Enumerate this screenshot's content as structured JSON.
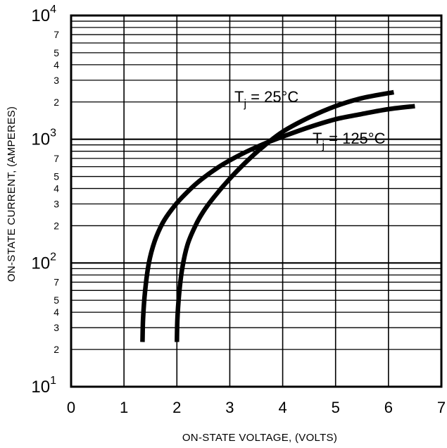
{
  "chart_data": {
    "type": "line",
    "xlabel": "ON-STATE VOLTAGE, (VOLTS)",
    "ylabel": "ON-STATE CURRENT, (AMPERES)",
    "xlim": [
      0,
      7
    ],
    "ylim": [
      10,
      10000
    ],
    "yscale": "log",
    "grid": true,
    "x_ticks": [
      "0",
      "1",
      "2",
      "3",
      "4",
      "5",
      "6",
      "7"
    ],
    "y_major_ticks": [
      {
        "base": "10",
        "exp": "1",
        "value": 10
      },
      {
        "base": "10",
        "exp": "2",
        "value": 100
      },
      {
        "base": "10",
        "exp": "3",
        "value": 1000
      },
      {
        "base": "10",
        "exp": "4",
        "value": 10000
      }
    ],
    "y_minor_labels": [
      {
        "label": "2",
        "value": 20
      },
      {
        "label": "3",
        "value": 30
      },
      {
        "label": "4",
        "value": 40
      },
      {
        "label": "5",
        "value": 50
      },
      {
        "label": "7",
        "value": 70
      },
      {
        "label": "2",
        "value": 200
      },
      {
        "label": "3",
        "value": 300
      },
      {
        "label": "4",
        "value": 400
      },
      {
        "label": "5",
        "value": 500
      },
      {
        "label": "7",
        "value": 700
      },
      {
        "label": "2",
        "value": 2000
      },
      {
        "label": "3",
        "value": 3000
      },
      {
        "label": "4",
        "value": 4000
      },
      {
        "label": "5",
        "value": 5000
      },
      {
        "label": "7",
        "value": 7000
      }
    ],
    "series": [
      {
        "label_main": "T",
        "label_sub": "j",
        "label_rest": " = 25°C",
        "x": [
          2.0,
          2.01,
          2.04,
          2.1,
          2.2,
          2.35,
          2.5,
          2.7,
          3.0,
          3.3,
          3.6,
          4.0,
          4.5,
          5.0,
          5.5,
          6.1
        ],
        "y": [
          23,
          35,
          55,
          90,
          140,
          200,
          260,
          340,
          480,
          650,
          850,
          1150,
          1500,
          1850,
          2150,
          2400
        ]
      },
      {
        "label_main": "T",
        "label_sub": "j",
        "label_rest": " = 125°C",
        "x": [
          1.35,
          1.36,
          1.4,
          1.47,
          1.58,
          1.73,
          1.9,
          2.1,
          2.4,
          2.8,
          3.2,
          3.6,
          4.0,
          4.5,
          5.0,
          5.5,
          6.0,
          6.5
        ],
        "y": [
          23,
          35,
          60,
          100,
          150,
          210,
          270,
          340,
          450,
          600,
          750,
          900,
          1050,
          1250,
          1450,
          1600,
          1750,
          1850
        ]
      }
    ]
  }
}
